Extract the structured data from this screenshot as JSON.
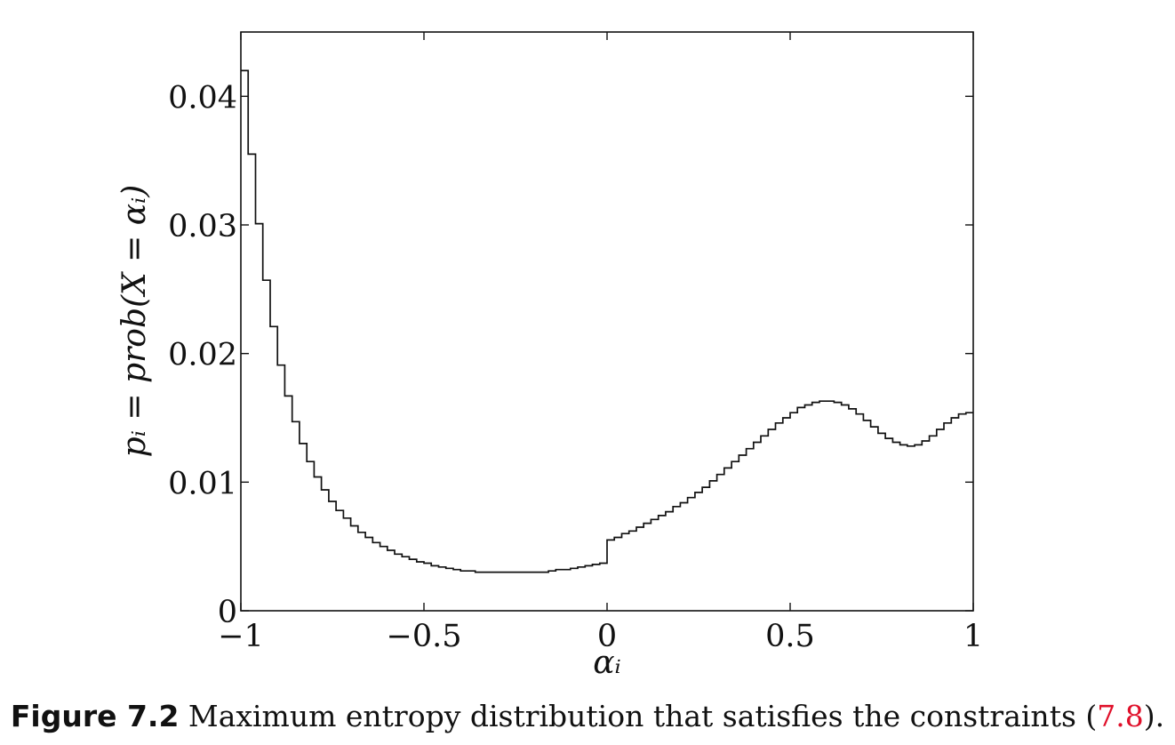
{
  "chart_data": {
    "type": "line",
    "style": "step",
    "xlabel": "αᵢ",
    "ylabel": "pᵢ = prob(X = αᵢ)",
    "xlim": [
      -1,
      1
    ],
    "ylim": [
      0,
      0.045
    ],
    "x_ticks": [
      "−1",
      "−0.5",
      "0",
      "0.5",
      "1"
    ],
    "y_ticks": [
      "0",
      "0.01",
      "0.02",
      "0.03",
      "0.04"
    ],
    "grid": false,
    "series": [
      {
        "x": [
          -1.0,
          -0.98,
          -0.96,
          -0.94,
          -0.92,
          -0.9,
          -0.88,
          -0.86,
          -0.84,
          -0.82,
          -0.8,
          -0.78,
          -0.76,
          -0.74,
          -0.72,
          -0.7,
          -0.68,
          -0.66,
          -0.64,
          -0.62,
          -0.6,
          -0.58,
          -0.56,
          -0.54,
          -0.52,
          -0.5,
          -0.48,
          -0.46,
          -0.44,
          -0.42,
          -0.4,
          -0.38,
          -0.36,
          -0.34,
          -0.32,
          -0.3,
          -0.28,
          -0.26,
          -0.24,
          -0.22,
          -0.2,
          -0.18,
          -0.16,
          -0.14,
          -0.12,
          -0.1,
          -0.08,
          -0.06,
          -0.04,
          -0.02,
          0.0,
          0.02,
          0.04,
          0.06,
          0.08,
          0.1,
          0.12,
          0.14,
          0.16,
          0.18,
          0.2,
          0.22,
          0.24,
          0.26,
          0.28,
          0.3,
          0.32,
          0.34,
          0.36,
          0.38,
          0.4,
          0.42,
          0.44,
          0.46,
          0.48,
          0.5,
          0.52,
          0.54,
          0.56,
          0.58,
          0.6,
          0.62,
          0.64,
          0.66,
          0.68,
          0.7,
          0.72,
          0.74,
          0.76,
          0.78,
          0.8,
          0.82,
          0.84,
          0.86,
          0.88,
          0.9,
          0.92,
          0.94,
          0.96,
          0.98
        ],
        "y": [
          0.042,
          0.0355,
          0.0301,
          0.0257,
          0.0221,
          0.0191,
          0.0167,
          0.0147,
          0.013,
          0.0116,
          0.0104,
          0.0094,
          0.0085,
          0.0078,
          0.0072,
          0.0066,
          0.0061,
          0.0057,
          0.0053,
          0.005,
          0.0047,
          0.0044,
          0.0042,
          0.004,
          0.0038,
          0.0037,
          0.0035,
          0.0034,
          0.0033,
          0.0032,
          0.0031,
          0.0031,
          0.003,
          0.003,
          0.003,
          0.003,
          0.003,
          0.003,
          0.003,
          0.003,
          0.003,
          0.003,
          0.0031,
          0.0032,
          0.0032,
          0.0033,
          0.0034,
          0.0035,
          0.0036,
          0.0037,
          0.0055,
          0.0057,
          0.006,
          0.0062,
          0.0065,
          0.0068,
          0.0071,
          0.0074,
          0.0077,
          0.0081,
          0.0084,
          0.0088,
          0.0092,
          0.0096,
          0.0101,
          0.0106,
          0.0111,
          0.0116,
          0.0121,
          0.0126,
          0.0131,
          0.0136,
          0.0141,
          0.0146,
          0.015,
          0.0154,
          0.0158,
          0.016,
          0.0162,
          0.0163,
          0.0163,
          0.0162,
          0.016,
          0.0157,
          0.0153,
          0.0148,
          0.0143,
          0.0138,
          0.0134,
          0.0131,
          0.0129,
          0.0128,
          0.0129,
          0.0132,
          0.0136,
          0.0141,
          0.0146,
          0.015,
          0.0153,
          0.0154
        ]
      }
    ]
  },
  "caption": {
    "figure_label": "Figure 7.2",
    "text": " Maximum entropy distribution that satisfies the constraints (",
    "reference": "7.8",
    "suffix": ")."
  }
}
